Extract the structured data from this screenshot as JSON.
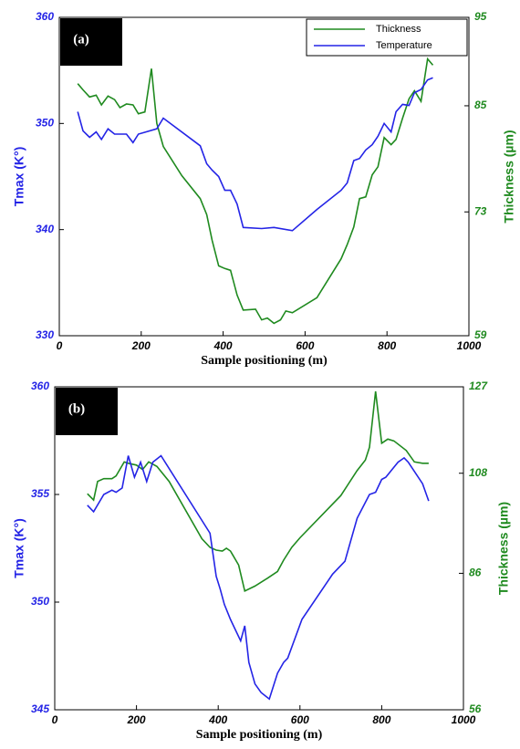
{
  "chart_data": [
    {
      "type": "line",
      "panel": "(a)",
      "xlabel": "Sample positioning (m)",
      "ylabel": "Tmax (K°)",
      "y2label": "Thickness (µm)",
      "xlim": [
        0,
        1000
      ],
      "xticks": [
        0,
        200,
        400,
        600,
        800,
        1000
      ],
      "ylim": [
        330,
        360
      ],
      "yticks": [
        330,
        340,
        350,
        360
      ],
      "y2lim": [
        59,
        95
      ],
      "y2ticks": [
        59,
        73,
        85,
        95
      ],
      "legend": "upper right",
      "series": [
        {
          "name": "Thickness",
          "color": "#1f8a1f",
          "axis": "y2",
          "x": [
            45,
            58,
            74,
            90,
            103,
            119,
            135,
            148,
            164,
            180,
            193,
            209,
            225,
            238,
            254,
            299,
            344,
            360,
            373,
            389,
            404,
            418,
            434,
            449,
            479,
            494,
            508,
            524,
            540,
            553,
            569,
            629,
            688,
            703,
            719,
            733,
            748,
            764,
            778,
            793,
            810,
            822,
            838,
            854,
            867,
            883,
            899,
            912
          ],
          "values": [
            87.5,
            86.8,
            86,
            86.2,
            85.1,
            86.1,
            85.7,
            84.8,
            85.2,
            85.1,
            84.1,
            84.3,
            89.2,
            83,
            80.4,
            77.1,
            74.5,
            72.7,
            69.8,
            66.9,
            66.6,
            66.4,
            63.6,
            61.9,
            62,
            60.8,
            61,
            60.4,
            60.8,
            61.8,
            61.6,
            63.3,
            67.7,
            69.3,
            71.3,
            74.5,
            74.7,
            77.2,
            78.1,
            81.4,
            80.6,
            81.2,
            83.6,
            85.8,
            86.7,
            85.5,
            90.3,
            89.6
          ]
        },
        {
          "name": "Temperature",
          "color": "#2424e6",
          "axis": "y",
          "x": [
            45,
            58,
            74,
            90,
            103,
            119,
            135,
            164,
            180,
            193,
            238,
            254,
            344,
            360,
            373,
            389,
            404,
            418,
            434,
            449,
            494,
            524,
            569,
            629,
            688,
            703,
            719,
            733,
            748,
            764,
            778,
            793,
            810,
            822,
            838,
            854,
            867,
            883,
            899,
            912
          ],
          "values": [
            351.1,
            349.3,
            348.7,
            349.2,
            348.5,
            349.5,
            349,
            349,
            348.2,
            349,
            349.5,
            350.5,
            347.9,
            346.2,
            345.6,
            345,
            343.7,
            343.7,
            342.4,
            340.2,
            340.1,
            340.2,
            339.9,
            341.9,
            343.7,
            344.4,
            346.5,
            346.7,
            347.5,
            348,
            348.8,
            350,
            349.2,
            351.1,
            351.8,
            351.7,
            352.9,
            353.2,
            354.1,
            354.3
          ]
        }
      ]
    },
    {
      "type": "line",
      "panel": "(b)",
      "xlabel": "Sample positioning (m)",
      "ylabel": "Tmax (K°)",
      "y2label": "Thickness (µm)",
      "xlim": [
        0,
        1000
      ],
      "xticks": [
        0,
        200,
        400,
        600,
        800,
        1000
      ],
      "ylim": [
        345,
        360
      ],
      "yticks": [
        345,
        350,
        355,
        360
      ],
      "y2lim": [
        56,
        127
      ],
      "y2ticks": [
        56,
        86,
        108,
        127
      ],
      "series": [
        {
          "name": "Thickness",
          "color": "#1f8a1f",
          "axis": "y2",
          "x": [
            80,
            95,
            105,
            120,
            140,
            150,
            170,
            180,
            200,
            215,
            230,
            250,
            280,
            360,
            380,
            395,
            410,
            420,
            430,
            450,
            465,
            490,
            520,
            545,
            560,
            580,
            600,
            700,
            740,
            760,
            770,
            785,
            800,
            815,
            830,
            860,
            880,
            900,
            915
          ],
          "values": [
            103.5,
            102.1,
            106.2,
            106.8,
            106.8,
            107.4,
            110.5,
            110.2,
            109.8,
            108.8,
            110.5,
            109.5,
            106.2,
            93.6,
            91.7,
            91.1,
            90.9,
            91.5,
            90.9,
            87.8,
            82.1,
            83.2,
            84.9,
            86.4,
            88.9,
            91.7,
            93.8,
            103.1,
            108.6,
            110.9,
            113.7,
            126,
            114.6,
            115.5,
            115.1,
            113,
            110.5,
            110.2,
            110.2
          ]
        },
        {
          "name": "Temperature",
          "color": "#2424e6",
          "axis": "y",
          "x": [
            80,
            95,
            120,
            140,
            150,
            165,
            180,
            195,
            210,
            225,
            240,
            260,
            380,
            395,
            405,
            415,
            430,
            455,
            465,
            475,
            490,
            505,
            525,
            545,
            560,
            570,
            605,
            680,
            710,
            740,
            770,
            785,
            800,
            810,
            840,
            855,
            865,
            900,
            915
          ],
          "values": [
            354.5,
            354.2,
            355,
            355.2,
            355.1,
            355.3,
            356.8,
            355.8,
            356.5,
            355.6,
            356.5,
            356.8,
            353.2,
            351.2,
            350.6,
            349.9,
            349.2,
            348.2,
            348.9,
            347.2,
            346.2,
            345.8,
            345.5,
            346.7,
            347.2,
            347.4,
            349.2,
            351.3,
            351.9,
            353.9,
            355,
            355.1,
            355.7,
            355.8,
            356.5,
            356.7,
            356.5,
            355.5,
            354.7
          ]
        }
      ]
    }
  ]
}
